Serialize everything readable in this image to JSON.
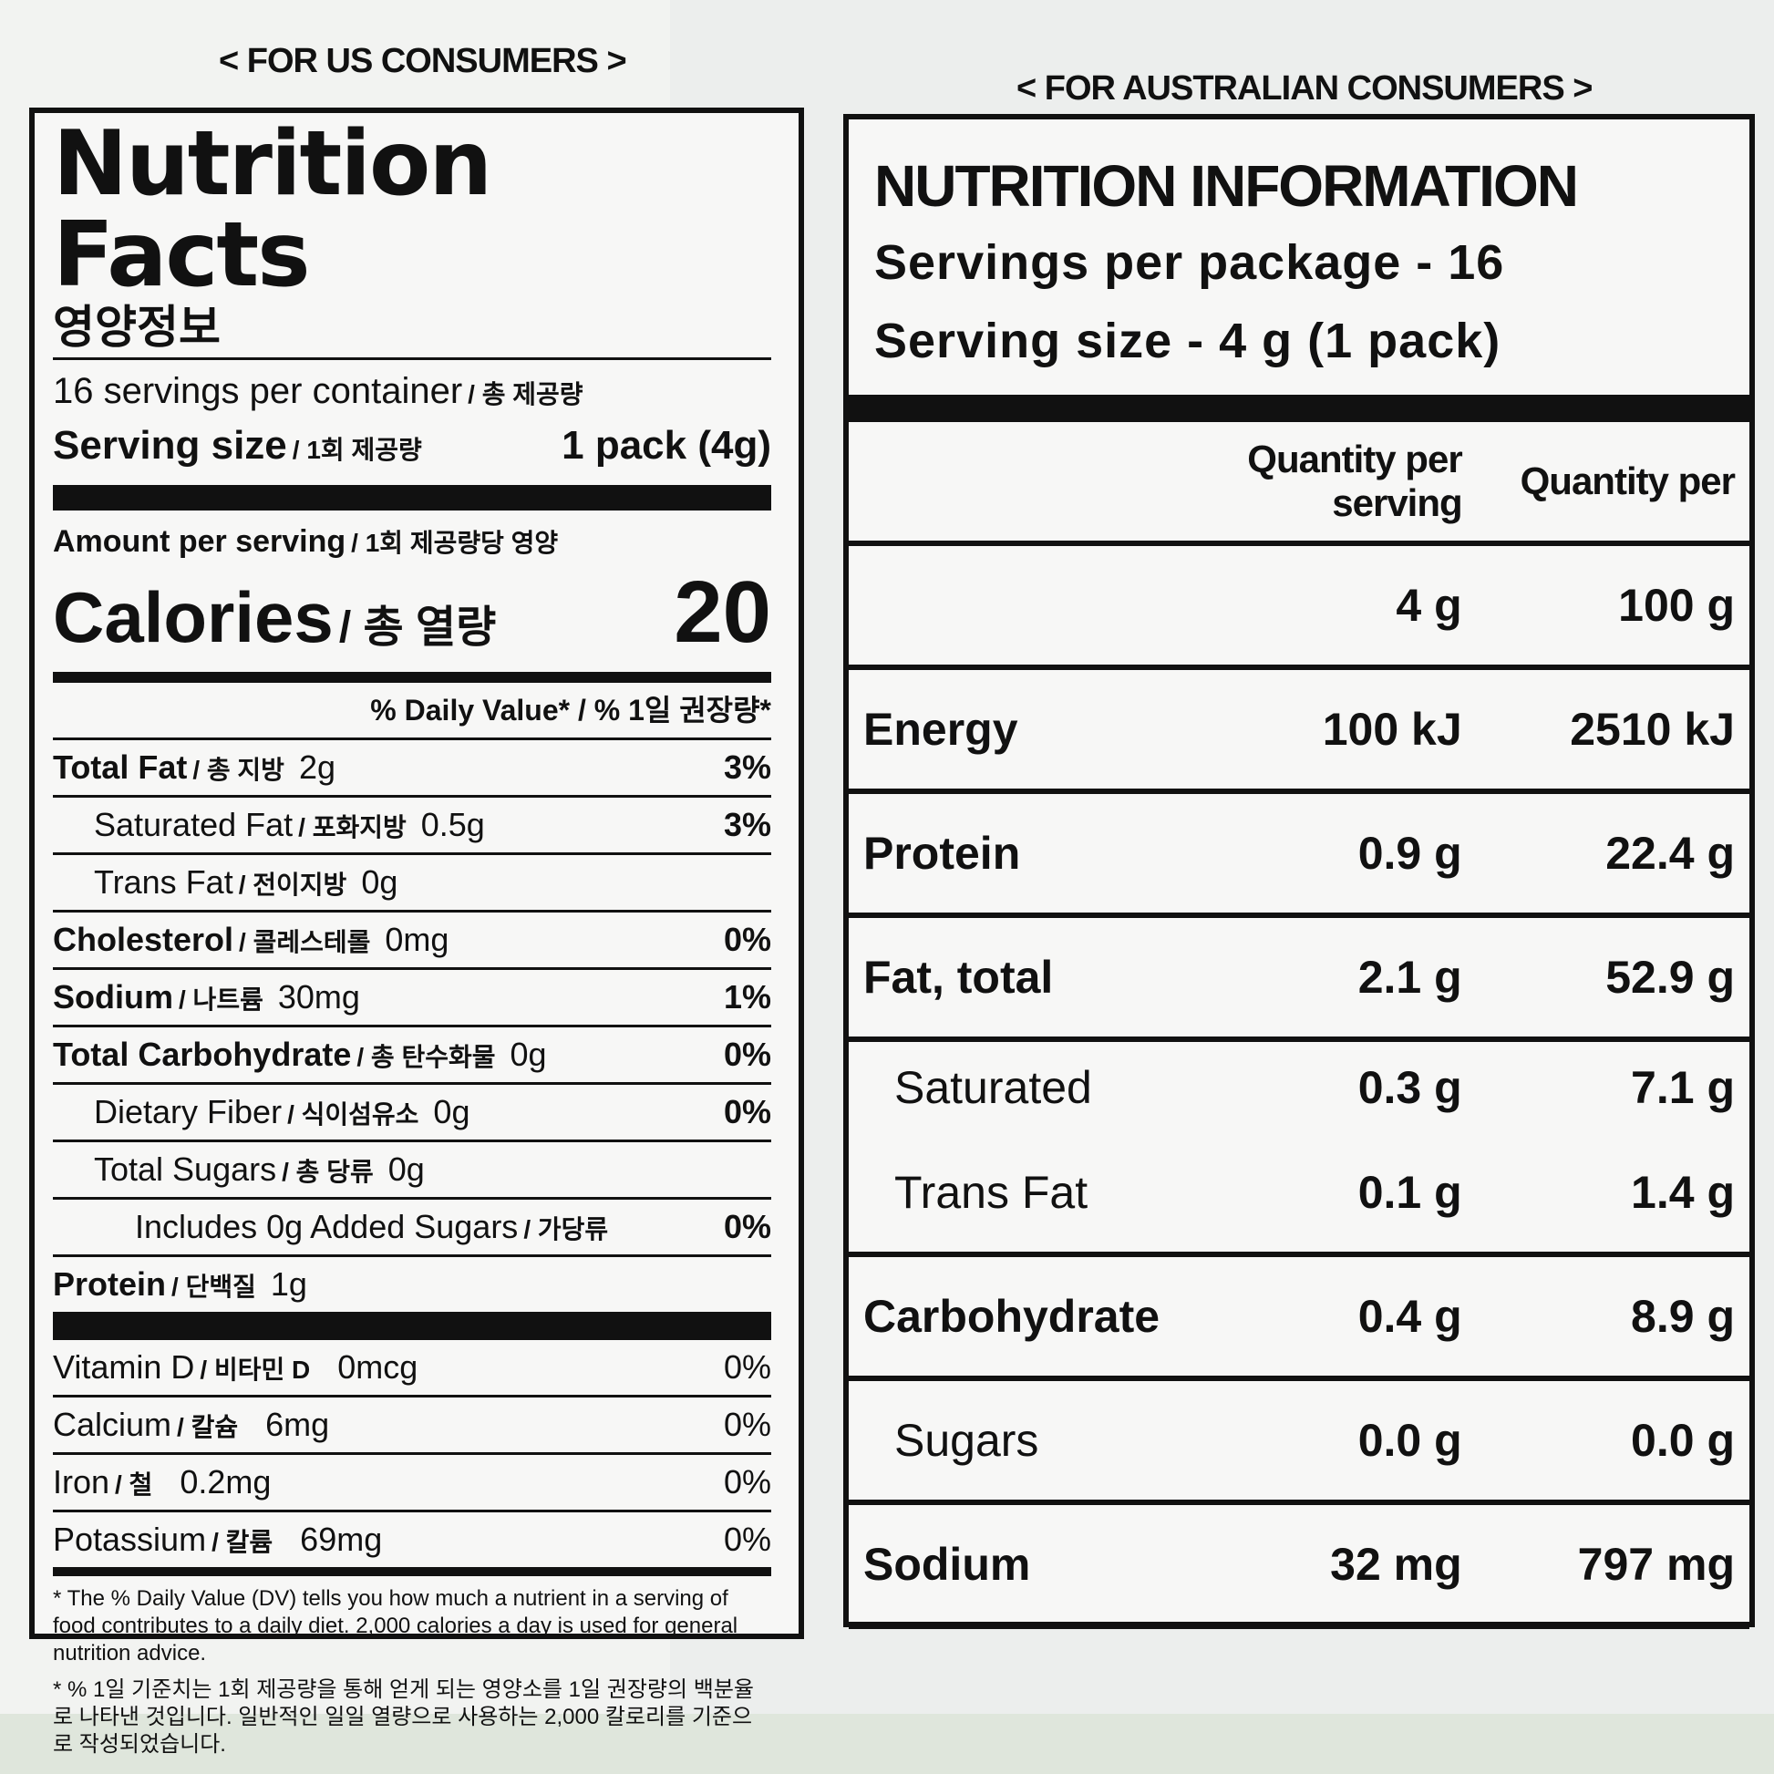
{
  "us_label": {
    "caption": "< FOR US CONSUMERS >",
    "title": "Nutrition Facts",
    "title_ko": "영양정보",
    "servings": "16 servings per container",
    "servings_ko": "/ 총 제공량",
    "serving_size_label": "Serving size",
    "serving_size_ko": "/ 1회 제공량",
    "serving_size_value": "1 pack (4g)",
    "amount_per_serving": "Amount per serving",
    "amount_per_serving_ko": "/ 1회 제공량당 영양",
    "calories_label": "Calories",
    "calories_ko": "/ 총 열량",
    "calories_value": "20",
    "daily_value_header": "% Daily Value* / % 1일 권장량*",
    "nutrients": [
      {
        "name": "Total Fat",
        "ko": "/ 총 지방",
        "amount": "2g",
        "dv": "3%",
        "bold": true,
        "indent": 0
      },
      {
        "name": "Saturated Fat",
        "ko": "/ 포화지방",
        "amount": "0.5g",
        "dv": "3%",
        "bold": false,
        "indent": 1
      },
      {
        "name": "Trans Fat",
        "ko": "/ 전이지방",
        "amount": "0g",
        "dv": "",
        "bold": false,
        "indent": 1
      },
      {
        "name": "Cholesterol",
        "ko": "/ 콜레스테롤",
        "amount": "0mg",
        "dv": "0%",
        "bold": true,
        "indent": 0
      },
      {
        "name": "Sodium",
        "ko": "/ 나트륨",
        "amount": "30mg",
        "dv": "1%",
        "bold": true,
        "indent": 0
      },
      {
        "name": "Total Carbohydrate",
        "ko": "/ 총 탄수화물",
        "amount": "0g",
        "dv": "0%",
        "bold": true,
        "indent": 0
      },
      {
        "name": "Dietary Fiber",
        "ko": "/ 식이섬유소",
        "amount": "0g",
        "dv": "0%",
        "bold": false,
        "indent": 1
      },
      {
        "name": "Total Sugars",
        "ko": "/ 총 당류",
        "amount": "0g",
        "dv": "",
        "bold": false,
        "indent": 1
      },
      {
        "name": "Includes 0g Added Sugars",
        "ko": "/ 가당류",
        "amount": "",
        "dv": "0%",
        "bold": false,
        "indent": 2
      },
      {
        "name": "Protein",
        "ko": "/ 단백질",
        "amount": "1g",
        "dv": "",
        "bold": true,
        "indent": 0
      }
    ],
    "vitamins": [
      {
        "name": "Vitamin D",
        "ko": "/ 비타민 D",
        "amount": "0mcg",
        "dv": "0%"
      },
      {
        "name": "Calcium",
        "ko": "/ 칼슘",
        "amount": "6mg",
        "dv": "0%"
      },
      {
        "name": "Iron",
        "ko": "/ 철",
        "amount": "0.2mg",
        "dv": "0%"
      },
      {
        "name": "Potassium",
        "ko": "/ 칼륨",
        "amount": "69mg",
        "dv": "0%"
      }
    ],
    "footnote_en": "* The % Daily Value (DV) tells you how much a nutrient in a serving of food contributes to a daily diet. 2,000 calories a day is used for general nutrition advice.",
    "footnote_ko": "* % 1일 기준치는 1회 제공량을 통해 얻게 되는 영양소를 1일 권장량의 백분율로 나타낸 것입니다. 일반적인 일일 열량으로 사용하는 2,000 칼로리를 기준으로 작성되었습니다."
  },
  "au_label": {
    "caption": "< FOR AUSTRALIAN CONSUMERS >",
    "title": "NUTRITION INFORMATION",
    "servings": "Servings per package - 16",
    "serving_size": "Serving size - 4 g (1 pack)",
    "col_per_serving": "Quantity per serving",
    "col_per_100": "Quantity per",
    "unit_per_serving": "4 g",
    "unit_per_100": "100 g",
    "rows": [
      {
        "name": "Energy",
        "per_serving": "100 kJ",
        "per_100g": "2510 kJ",
        "sub": false
      },
      {
        "name": "Protein",
        "per_serving": "0.9 g",
        "per_100g": "22.4 g",
        "sub": false
      },
      {
        "name": "Fat, total",
        "per_serving": "2.1 g",
        "per_100g": "52.9 g",
        "sub": false
      },
      {
        "name": "Saturated",
        "per_serving": "0.3 g",
        "per_100g": "7.1 g",
        "sub": true
      },
      {
        "name": "Trans Fat",
        "per_serving": "0.1 g",
        "per_100g": "1.4 g",
        "sub": true
      },
      {
        "name": "Carbohydrate",
        "per_serving": "0.4 g",
        "per_100g": "8.9 g",
        "sub": false
      },
      {
        "name": "Sugars",
        "per_serving": "0.0 g",
        "per_100g": "0.0 g",
        "sub": true
      },
      {
        "name": "Sodium",
        "per_serving": "32 mg",
        "per_100g": "797 mg",
        "sub": false
      }
    ]
  }
}
